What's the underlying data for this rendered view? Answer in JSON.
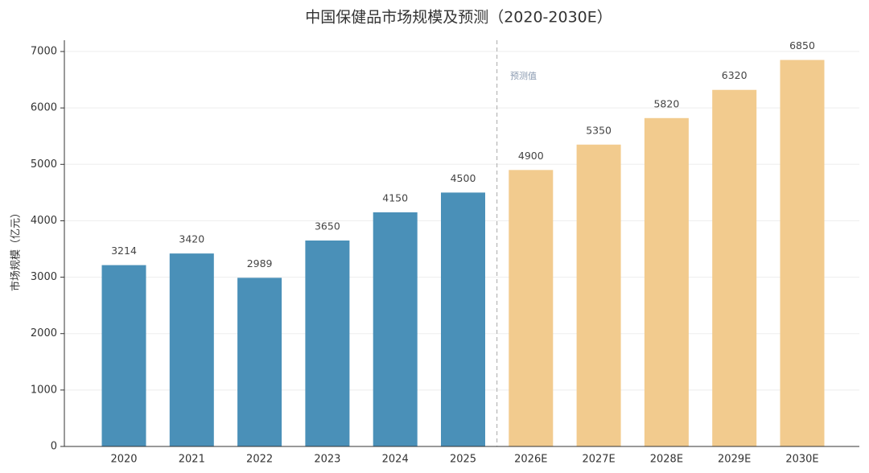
{
  "chart_data": {
    "type": "bar",
    "title": "中国保健品市场规模及预测（2020-2030E）",
    "y_label": "市场规模（亿元）",
    "annotation": "预测值",
    "categories": [
      "2020",
      "2021",
      "2022",
      "2023",
      "2024",
      "2025",
      "2026E",
      "2027E",
      "2028E",
      "2029E",
      "2030E"
    ],
    "values": [
      3214,
      3420,
      2989,
      3650,
      4150,
      4500,
      4900,
      5350,
      5820,
      6320,
      6850
    ],
    "colors": [
      "#4a90b8",
      "#4a90b8",
      "#4a90b8",
      "#4a90b8",
      "#4a90b8",
      "#4a90b8",
      "#f2cb8e",
      "#f2cb8e",
      "#f2cb8e",
      "#f2cb8e",
      "#f2cb8e"
    ],
    "ylim": [
      0,
      7200
    ],
    "yticks": [
      0,
      1000,
      2000,
      3000,
      4000,
      5000,
      6000,
      7000
    ],
    "grid": true
  }
}
